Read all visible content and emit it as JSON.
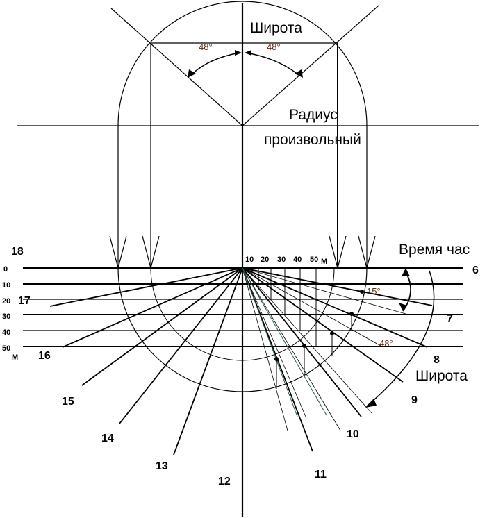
{
  "labels": {
    "latitude_top": "Широта",
    "radius_line1": "Радиус",
    "radius_line2": "произвольный",
    "time_hour": "Время час",
    "latitude_right": "Широта",
    "angle_left": "48°",
    "angle_right": "48°",
    "angle_15": "15°",
    "angle_48": "48°",
    "minutes_suffix": "М",
    "minutes_suffix_left": "М"
  },
  "hours": {
    "h6": "6",
    "h7": "7",
    "h8": "8",
    "h9": "9",
    "h10": "10",
    "h11": "11",
    "h12": "12",
    "h13": "13",
    "h14": "14",
    "h15": "15",
    "h16": "16",
    "h17": "17",
    "h18": "18"
  },
  "minutes_top": [
    "10",
    "20",
    "30",
    "40",
    "50"
  ],
  "minutes_left": [
    "0",
    "10",
    "20",
    "30",
    "40",
    "50"
  ]
}
